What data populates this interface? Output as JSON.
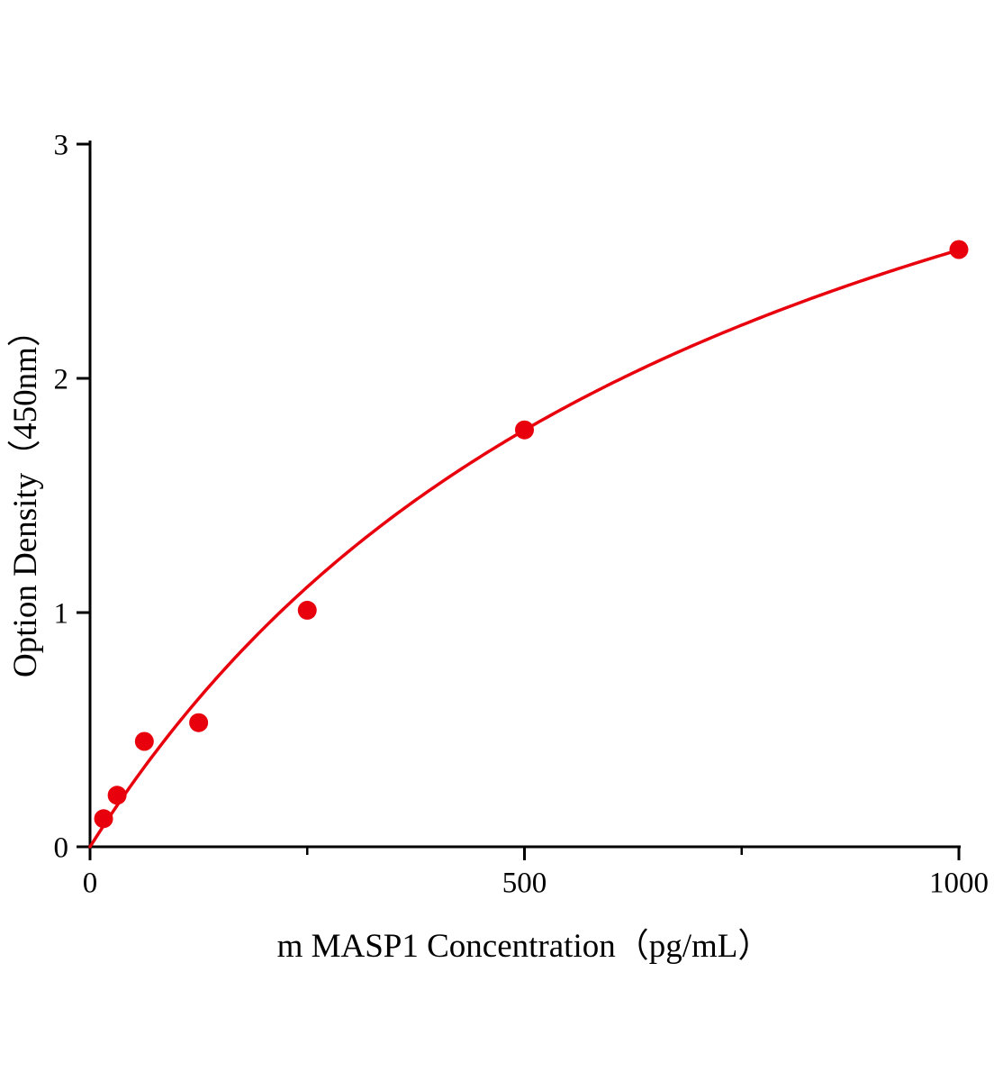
{
  "chart_data": {
    "type": "scatter",
    "title": "",
    "xlabel": "m MASP1 Concentration（pg/mL）",
    "ylabel": "Option Density（450nm）",
    "x": [
      15.6,
      31.2,
      62.5,
      125,
      250,
      500,
      1000
    ],
    "y": [
      0.12,
      0.22,
      0.45,
      0.53,
      1.01,
      1.78,
      2.55
    ],
    "xlim": [
      0,
      1000
    ],
    "ylim": [
      0,
      3
    ],
    "x_major_ticks": [
      0,
      500,
      1000
    ],
    "x_minor_ticks": [
      250,
      750
    ],
    "y_major_ticks": [
      0,
      1,
      2,
      3
    ],
    "grid": false,
    "legend": false,
    "marker_color": "#e8000d",
    "line_color": "#e8000d",
    "axis_color": "#000000",
    "fit": {
      "type": "michaelis_menten",
      "vmax": 4.49,
      "k": 762
    }
  }
}
